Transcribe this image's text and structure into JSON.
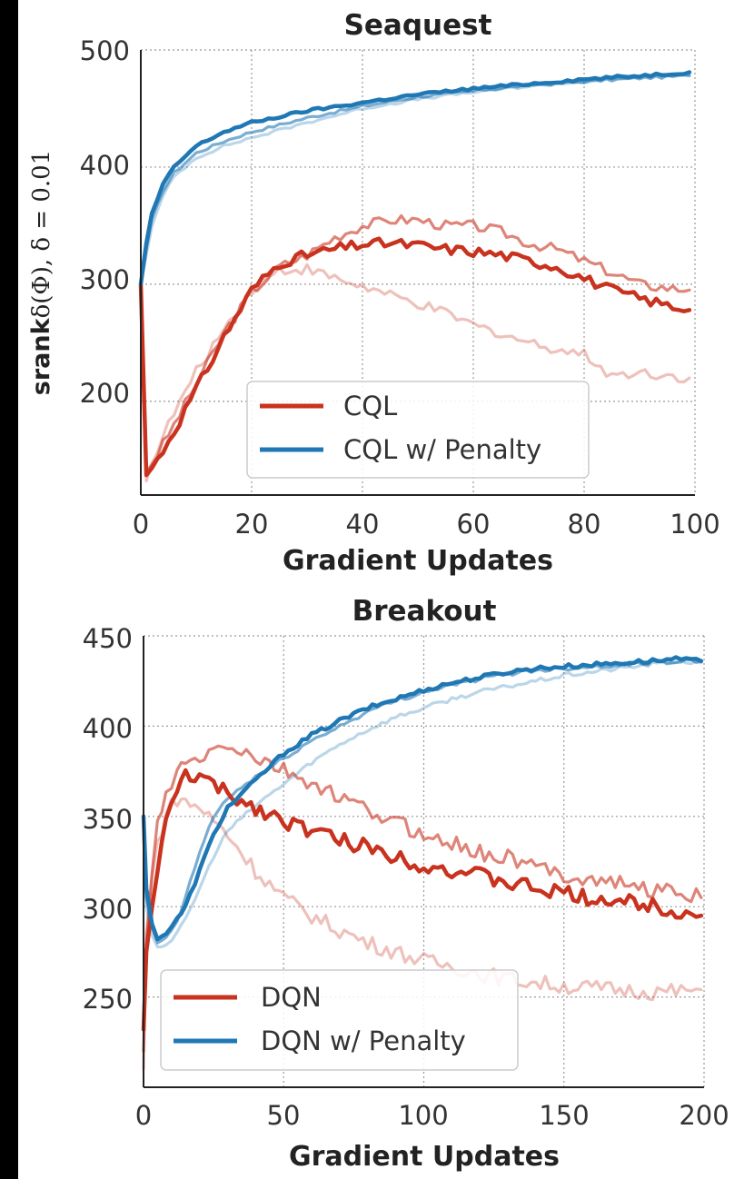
{
  "chart_data": [
    {
      "type": "line",
      "title": "Seaquest",
      "xlabel": "Gradient Updates",
      "ylabel": "srank",
      "ylabel_tex": "δ(Φ), δ = 0.01",
      "xlim": [
        0,
        100
      ],
      "ylim": [
        120,
        500
      ],
      "xticks": [
        "0",
        "20",
        "40",
        "60",
        "80",
        "100"
      ],
      "yticks": [
        "200",
        "300",
        "400",
        "500"
      ],
      "legend_position": "lower-center",
      "legend": [
        "CQL",
        "CQL w/ Penalty"
      ],
      "colors": {
        "red": "#c8321e",
        "blue": "#1f77b4"
      },
      "series": [
        {
          "name": "CQL",
          "role": "mean",
          "color": "#c8321e",
          "x": [
            0,
            1,
            3,
            6,
            10,
            15,
            20,
            25,
            30,
            35,
            40,
            45,
            50,
            55,
            60,
            65,
            70,
            75,
            80,
            85,
            90,
            95,
            99
          ],
          "values": [
            300,
            137,
            150,
            175,
            210,
            255,
            295,
            318,
            325,
            330,
            334,
            335,
            333,
            330,
            328,
            325,
            320,
            315,
            305,
            295,
            288,
            282,
            278
          ]
        },
        {
          "name": "CQL seed 1",
          "role": "seed",
          "color": "#c8321e",
          "x": [
            0,
            1,
            3,
            6,
            10,
            15,
            20,
            25,
            30,
            35,
            40,
            45,
            50,
            55,
            60,
            65,
            70,
            75,
            80,
            85,
            90,
            95,
            99
          ],
          "values": [
            300,
            140,
            155,
            180,
            215,
            258,
            293,
            315,
            325,
            340,
            350,
            355,
            355,
            350,
            350,
            345,
            335,
            330,
            320,
            310,
            300,
            297,
            295
          ]
        },
        {
          "name": "CQL seed 2",
          "role": "seed",
          "color": "#c8321e",
          "x": [
            0,
            1,
            3,
            6,
            10,
            15,
            20,
            25,
            30,
            35,
            40,
            45,
            50,
            55,
            60,
            65,
            70,
            75,
            80,
            85,
            90,
            95,
            99
          ],
          "values": [
            300,
            132,
            160,
            190,
            225,
            262,
            295,
            312,
            313,
            305,
            298,
            290,
            283,
            275,
            265,
            258,
            250,
            245,
            240,
            222,
            225,
            222,
            220
          ]
        },
        {
          "name": "CQL w/ Penalty",
          "role": "mean",
          "color": "#1f77b4",
          "x": [
            0,
            1,
            2,
            4,
            6,
            10,
            15,
            20,
            30,
            40,
            50,
            60,
            70,
            80,
            90,
            99
          ],
          "values": [
            300,
            335,
            360,
            385,
            400,
            418,
            430,
            438,
            448,
            455,
            462,
            467,
            471,
            475,
            478,
            481
          ]
        },
        {
          "name": "CQL w/ Penalty seed 1",
          "role": "seed",
          "color": "#1f77b4",
          "x": [
            0,
            1,
            2,
            4,
            6,
            10,
            15,
            20,
            30,
            40,
            50,
            60,
            70,
            80,
            90,
            99
          ],
          "values": [
            300,
            330,
            355,
            380,
            395,
            412,
            422,
            430,
            442,
            452,
            460,
            465,
            470,
            473,
            476,
            478
          ]
        },
        {
          "name": "CQL w/ Penalty seed 2",
          "role": "seed",
          "color": "#1f77b4",
          "x": [
            0,
            1,
            2,
            4,
            6,
            10,
            15,
            20,
            30,
            40,
            50,
            60,
            70,
            80,
            90,
            99
          ],
          "values": [
            300,
            325,
            350,
            375,
            392,
            408,
            418,
            425,
            438,
            450,
            458,
            464,
            469,
            473,
            477,
            479
          ]
        }
      ]
    },
    {
      "type": "line",
      "title": "Breakout",
      "xlabel": "Gradient Updates",
      "ylabel": "",
      "xlim": [
        0,
        200
      ],
      "ylim": [
        200,
        450
      ],
      "xticks": [
        "0",
        "50",
        "100",
        "150",
        "200"
      ],
      "yticks": [
        "250",
        "300",
        "350",
        "400",
        "450"
      ],
      "legend_position": "lower-left",
      "legend": [
        "DQN",
        "DQN w/ Penalty"
      ],
      "colors": {
        "red": "#c8321e",
        "blue": "#1f77b4"
      },
      "series": [
        {
          "name": "DQN",
          "role": "mean",
          "color": "#c8321e",
          "x": [
            0,
            1,
            3,
            5,
            8,
            12,
            15,
            20,
            30,
            40,
            50,
            60,
            70,
            80,
            90,
            100,
            110,
            120,
            130,
            140,
            150,
            160,
            170,
            180,
            190,
            199
          ],
          "values": [
            232,
            275,
            300,
            322,
            345,
            365,
            373,
            372,
            362,
            355,
            348,
            342,
            337,
            333,
            328,
            323,
            320,
            317,
            313,
            310,
            307,
            305,
            303,
            301,
            298,
            295
          ]
        },
        {
          "name": "DQN seed 1",
          "role": "seed",
          "color": "#c8321e",
          "x": [
            0,
            1,
            3,
            5,
            8,
            12,
            15,
            20,
            30,
            40,
            50,
            60,
            70,
            80,
            90,
            100,
            110,
            120,
            130,
            140,
            150,
            160,
            170,
            180,
            190,
            199
          ],
          "values": [
            220,
            280,
            320,
            345,
            360,
            375,
            378,
            382,
            390,
            382,
            375,
            368,
            360,
            353,
            347,
            340,
            335,
            330,
            327,
            322,
            318,
            315,
            313,
            310,
            308,
            305
          ]
        },
        {
          "name": "DQN seed 2",
          "role": "seed",
          "color": "#c8321e",
          "x": [
            0,
            1,
            3,
            5,
            8,
            12,
            15,
            20,
            30,
            40,
            50,
            60,
            70,
            80,
            90,
            100,
            110,
            120,
            130,
            140,
            150,
            160,
            170,
            180,
            190,
            199
          ],
          "values": [
            210,
            285,
            315,
            335,
            352,
            360,
            358,
            355,
            340,
            320,
            305,
            295,
            287,
            280,
            275,
            270,
            267,
            263,
            260,
            258,
            256,
            255,
            254,
            253,
            253,
            254
          ]
        },
        {
          "name": "DQN w/ Penalty",
          "role": "mean",
          "color": "#1f77b4",
          "x": [
            0,
            1,
            3,
            5,
            8,
            12,
            15,
            20,
            25,
            30,
            40,
            50,
            60,
            70,
            80,
            90,
            100,
            110,
            120,
            130,
            140,
            150,
            160,
            170,
            180,
            190,
            199
          ],
          "values": [
            350,
            310,
            290,
            283,
            285,
            293,
            300,
            320,
            340,
            355,
            370,
            385,
            395,
            403,
            410,
            415,
            420,
            424,
            427,
            430,
            432,
            433,
            434,
            435,
            436,
            437,
            436
          ]
        },
        {
          "name": "DQN w/ Penalty seed 1",
          "role": "seed",
          "color": "#1f77b4",
          "x": [
            0,
            1,
            3,
            5,
            8,
            12,
            15,
            20,
            25,
            30,
            40,
            50,
            60,
            70,
            80,
            90,
            100,
            110,
            120,
            130,
            140,
            150,
            160,
            170,
            180,
            190,
            199
          ],
          "values": [
            345,
            305,
            288,
            280,
            282,
            292,
            305,
            330,
            350,
            360,
            372,
            382,
            392,
            400,
            408,
            414,
            419,
            423,
            426,
            429,
            431,
            432,
            433,
            434,
            435,
            436,
            436
          ]
        },
        {
          "name": "DQN w/ Penalty seed 2",
          "role": "seed",
          "color": "#1f77b4",
          "x": [
            0,
            1,
            3,
            5,
            8,
            12,
            15,
            20,
            25,
            30,
            40,
            50,
            60,
            70,
            80,
            90,
            100,
            110,
            120,
            130,
            140,
            150,
            160,
            170,
            180,
            190,
            199
          ],
          "values": [
            340,
            300,
            285,
            278,
            279,
            285,
            293,
            310,
            328,
            342,
            356,
            368,
            380,
            390,
            398,
            405,
            410,
            415,
            419,
            422,
            425,
            428,
            430,
            432,
            434,
            436,
            435
          ]
        }
      ]
    }
  ]
}
